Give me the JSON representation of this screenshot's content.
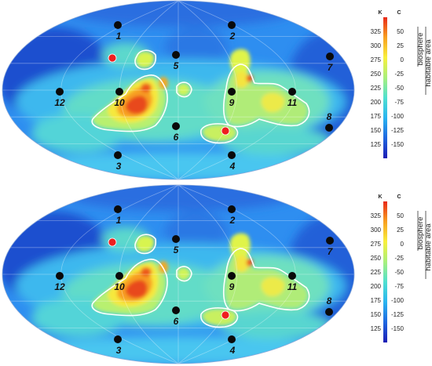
{
  "maps": [
    {
      "id": "top",
      "sites": [
        {
          "label": "1",
          "type": "black"
        },
        {
          "label": "2",
          "type": "black"
        },
        {
          "label": "3",
          "type": "black"
        },
        {
          "label": "4",
          "type": "black"
        },
        {
          "label": "5",
          "type": "black"
        },
        {
          "label": "6",
          "type": "black"
        },
        {
          "label": "7",
          "type": "black"
        },
        {
          "label": "8",
          "type": "black"
        },
        {
          "label": "9",
          "type": "black"
        },
        {
          "label": "10",
          "type": "black"
        },
        {
          "label": "11",
          "type": "black"
        },
        {
          "label": "12",
          "type": "black"
        },
        {
          "label": "",
          "type": "red"
        },
        {
          "label": "",
          "type": "red"
        }
      ]
    },
    {
      "id": "bottom",
      "sites": [
        {
          "label": "1",
          "type": "black"
        },
        {
          "label": "2",
          "type": "black"
        },
        {
          "label": "3",
          "type": "black"
        },
        {
          "label": "4",
          "type": "black"
        },
        {
          "label": "5",
          "type": "black"
        },
        {
          "label": "6",
          "type": "black"
        },
        {
          "label": "7",
          "type": "black"
        },
        {
          "label": "8",
          "type": "black"
        },
        {
          "label": "9",
          "type": "black"
        },
        {
          "label": "10",
          "type": "black"
        },
        {
          "label": "11",
          "type": "black"
        },
        {
          "label": "12",
          "type": "black"
        },
        {
          "label": "",
          "type": "red"
        },
        {
          "label": "",
          "type": "red"
        }
      ]
    }
  ],
  "colorbar": {
    "unit_kelvin": "K",
    "unit_celsius": "C",
    "kelvin_ticks": [
      "325",
      "300",
      "275",
      "250",
      "225",
      "200",
      "175",
      "150",
      "125"
    ],
    "celsius_ticks": [
      "50",
      "25",
      "0",
      "-25",
      "-50",
      "-75",
      "-100",
      "-125",
      "-150"
    ],
    "zone_biosphere": "biosphere",
    "zone_habitable": "habitable area",
    "colors": [
      "#1c1cb4",
      "#1f66e0",
      "#29b4f0",
      "#4fe0d0",
      "#a8f07c",
      "#f8f03c",
      "#f8a020",
      "#e82818"
    ]
  }
}
